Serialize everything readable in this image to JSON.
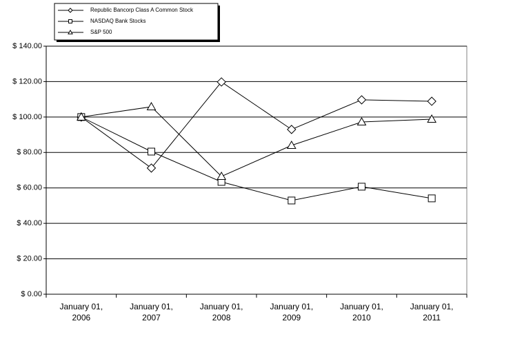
{
  "chart_data": {
    "type": "line",
    "categories": [
      "January 01, 2006",
      "January 01, 2007",
      "January 01, 2008",
      "January 01, 2009",
      "January 01, 2010",
      "January 01, 2011"
    ],
    "series": [
      {
        "name": "Republic Bancorp Class A Common Stock",
        "color": "#000000",
        "marker": "diamond",
        "values": [
          100,
          71.2,
          119.8,
          93.0,
          109.7,
          108.9
        ]
      },
      {
        "name": "NASDAQ Bank Stocks",
        "color": "#000000",
        "marker": "square",
        "values": [
          100,
          80.5,
          63.4,
          52.9,
          60.7,
          54.1
        ]
      },
      {
        "name": "S&P 500",
        "color": "#000000",
        "marker": "triangle",
        "values": [
          100,
          105.8,
          66.5,
          84.0,
          97.2,
          98.8
        ]
      }
    ],
    "ylim": [
      0,
      140
    ],
    "yticks": [
      {
        "value": 0,
        "label": "$ 0.00"
      },
      {
        "value": 20,
        "label": "$ 20.00"
      },
      {
        "value": 40,
        "label": "$ 40.00"
      },
      {
        "value": 60,
        "label": "$ 60.00"
      },
      {
        "value": 80,
        "label": "$ 80.00"
      },
      {
        "value": 100,
        "label": "$ 100.00"
      },
      {
        "value": 120,
        "label": "$ 120.00"
      },
      {
        "value": 140,
        "label": "$ 140.00"
      }
    ],
    "grid": true,
    "legend": "top-left"
  }
}
